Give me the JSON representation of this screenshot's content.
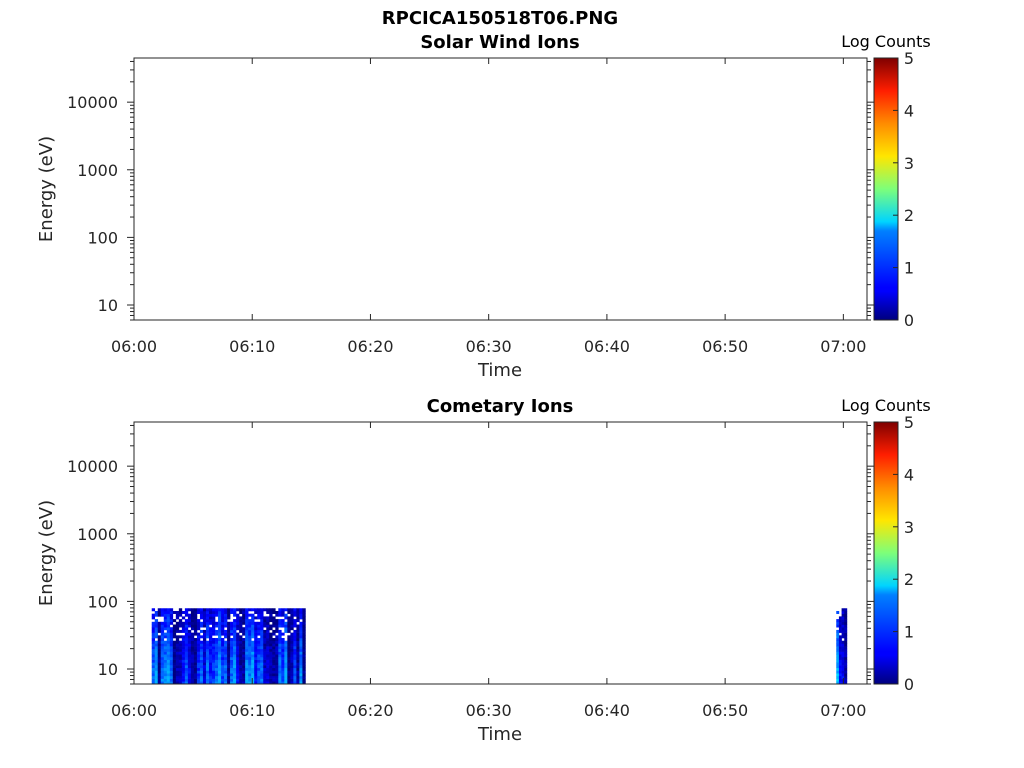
{
  "figure_title": "RPCICA150518T06.PNG",
  "chart_data": [
    {
      "type": "heatmap",
      "title": "Solar Wind Ions",
      "xlabel": "Time",
      "ylabel": "Energy (eV)",
      "yscale": "log",
      "ylim": [
        6,
        45000
      ],
      "xlim": [
        "06:00",
        "07:02"
      ],
      "x_ticks": [
        "06:00",
        "06:10",
        "06:20",
        "06:30",
        "06:40",
        "06:50",
        "07:00"
      ],
      "y_ticks": [
        "10",
        "100",
        "1000",
        "10000"
      ],
      "colorbar": {
        "label": "Log Counts",
        "min": 0,
        "max": 5,
        "ticks": [
          "0",
          "1",
          "2",
          "3",
          "4",
          "5"
        ],
        "colormap": "jet"
      },
      "data_blocks": []
    },
    {
      "type": "heatmap",
      "title": "Cometary Ions",
      "xlabel": "Time",
      "ylabel": "Energy (eV)",
      "yscale": "log",
      "ylim": [
        6,
        45000
      ],
      "xlim": [
        "06:00",
        "07:02"
      ],
      "x_ticks": [
        "06:00",
        "06:10",
        "06:20",
        "06:30",
        "06:40",
        "06:50",
        "07:00"
      ],
      "y_ticks": [
        "10",
        "100",
        "1000",
        "10000"
      ],
      "colorbar": {
        "label": "Log Counts",
        "min": 0,
        "max": 5,
        "ticks": [
          "0",
          "1",
          "2",
          "3",
          "4",
          "5"
        ],
        "colormap": "jet"
      },
      "data_blocks": [
        {
          "time_start": "06:01.5",
          "time_end": "06:14.5",
          "energy_min_eV": 6,
          "energy_max_eV": 78,
          "log_counts_range": [
            0,
            1.5
          ]
        },
        {
          "time_start": "06:59.4",
          "time_end": "07:00.3",
          "energy_min_eV": 6,
          "energy_max_eV": 78,
          "log_counts_range": [
            0,
            2
          ]
        }
      ]
    }
  ]
}
